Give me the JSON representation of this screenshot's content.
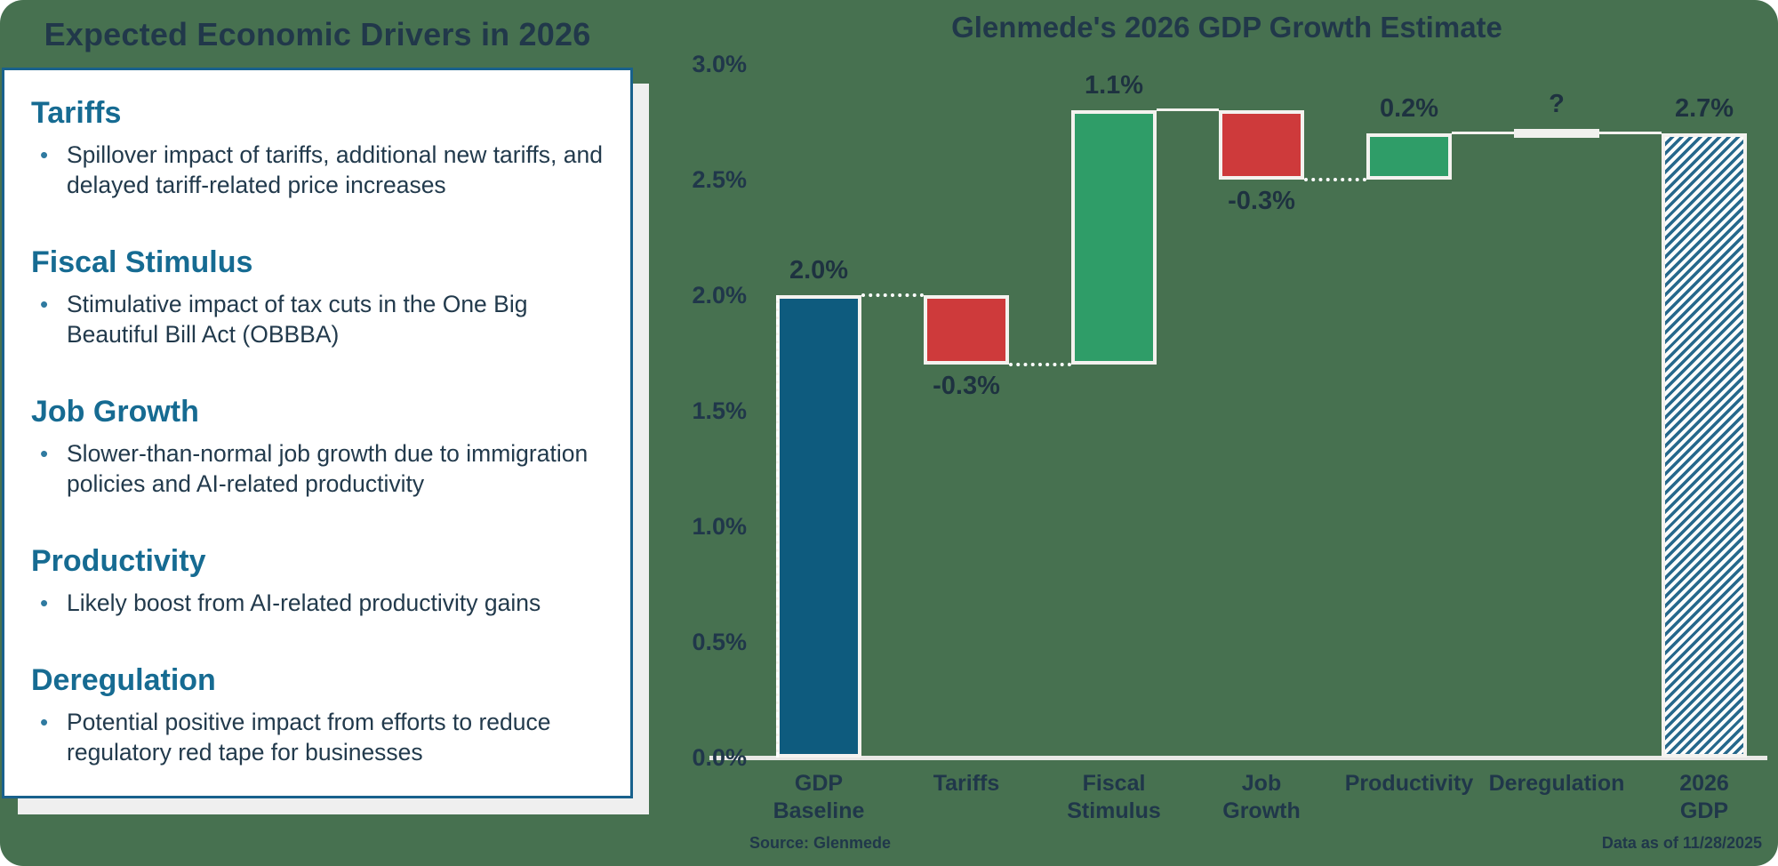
{
  "left_panel": {
    "title": "Expected Economic Drivers in 2026",
    "sections": [
      {
        "heading": "Tariffs",
        "bullets": [
          "Spillover impact of tariffs, additional new tariffs, and delayed tariff-related price increases"
        ]
      },
      {
        "heading": "Fiscal Stimulus",
        "bullets": [
          "Stimulative impact of tax cuts in the One Big Beautiful Bill Act (OBBBA)"
        ]
      },
      {
        "heading": "Job Growth",
        "bullets": [
          "Slower-than-normal job growth due to immigration policies and AI-related productivity"
        ]
      },
      {
        "heading": "Productivity",
        "bullets": [
          "Likely boost from AI-related productivity gains"
        ]
      },
      {
        "heading": "Deregulation",
        "bullets": [
          "Potential positive impact from efforts to reduce regulatory red tape for businesses"
        ]
      }
    ]
  },
  "chart_data": {
    "type": "bar",
    "subtype": "waterfall",
    "title": "Glenmede's 2026 GDP Growth Estimate",
    "categories": [
      "GDP\nBaseline",
      "Tariffs",
      "Fiscal\nStimulus",
      "Job\nGrowth",
      "Productivity",
      "Deregulation",
      "2026\nGDP"
    ],
    "bars": [
      {
        "category": "GDP\nBaseline",
        "label": "2.0%",
        "start": 0,
        "end": 2.0,
        "type": "total",
        "label_pos": "above"
      },
      {
        "category": "Tariffs",
        "label": "-0.3%",
        "start": 2.0,
        "end": 1.7,
        "type": "decrease",
        "label_pos": "below"
      },
      {
        "category": "Fiscal\nStimulus",
        "label": "1.1%",
        "start": 1.7,
        "end": 2.8,
        "type": "increase",
        "label_pos": "above"
      },
      {
        "category": "Job\nGrowth",
        "label": "-0.3%",
        "start": 2.8,
        "end": 2.5,
        "type": "decrease",
        "label_pos": "below"
      },
      {
        "category": "Productivity",
        "label": "0.2%",
        "start": 2.5,
        "end": 2.7,
        "type": "increase",
        "label_pos": "above"
      },
      {
        "category": "Deregulation",
        "label": "?",
        "start": 2.7,
        "end": 2.7,
        "type": "unknown",
        "label_pos": "above"
      },
      {
        "category": "2026\nGDP",
        "label": "2.7%",
        "start": 0,
        "end": 2.7,
        "type": "result",
        "label_pos": "above"
      }
    ],
    "connectors": [
      {
        "level": 2.0,
        "from": 0,
        "to": 1,
        "style": "dotted"
      },
      {
        "level": 1.7,
        "from": 1,
        "to": 2,
        "style": "dotted"
      },
      {
        "level": 2.8,
        "from": 2,
        "to": 3,
        "style": "solid"
      },
      {
        "level": 2.5,
        "from": 3,
        "to": 4,
        "style": "dotted"
      },
      {
        "level": 2.7,
        "from": 4,
        "to": 5,
        "style": "solid"
      },
      {
        "level": 2.7,
        "from": 5,
        "to": 6,
        "style": "solid"
      }
    ],
    "y_axis": {
      "min": 0,
      "max": 3.0,
      "step": 0.5,
      "tick_labels": [
        "0.0%",
        "0.5%",
        "1.0%",
        "1.5%",
        "2.0%",
        "2.5%",
        "3.0%"
      ]
    },
    "grid": false,
    "legend": "none",
    "colors": {
      "background": "#477150",
      "navy_text": "#21384a",
      "heading_teal": "#166b92",
      "panel_border": "#19618c",
      "bar_blue": "#0e5b7e",
      "bar_red": "#ce3a3b",
      "bar_green": "#2f9d68",
      "hatch_blue": "#26688c",
      "bar_outline": "#f4f2ef",
      "axis_line": "#e9e8e6"
    }
  },
  "footer": {
    "source": "Source: Glenmede",
    "data_as_of": "Data as of 11/28/2025"
  }
}
